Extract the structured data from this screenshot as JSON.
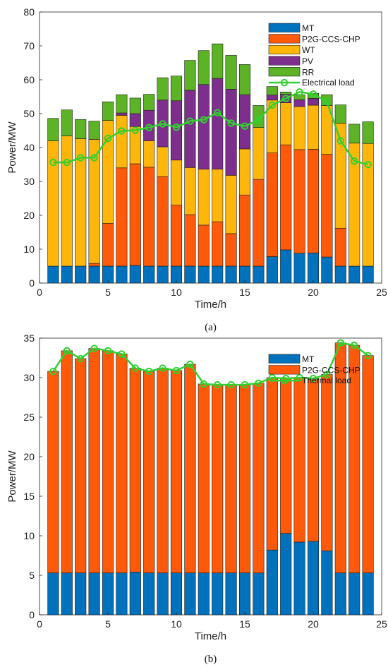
{
  "chart_data": [
    {
      "type": "bar",
      "stacked": true,
      "caption": "(a)",
      "xlabel": "Time/h",
      "ylabel": "Power/MW",
      "xlim": [
        0,
        25
      ],
      "ylim": [
        0,
        80
      ],
      "xticks": [
        0,
        5,
        10,
        15,
        20,
        25
      ],
      "yticks": [
        0,
        10,
        20,
        30,
        40,
        50,
        60,
        70,
        80
      ],
      "grid": false,
      "legend_position": "top-right",
      "x": [
        1,
        2,
        3,
        4,
        5,
        6,
        7,
        8,
        9,
        10,
        11,
        12,
        13,
        14,
        15,
        16,
        17,
        18,
        19,
        20,
        21,
        22,
        23,
        24
      ],
      "series": [
        {
          "name": "MT",
          "color": "#0072BD",
          "values": [
            5,
            5,
            5,
            5,
            5,
            5,
            5.2,
            5,
            5,
            5,
            5,
            5,
            5,
            5,
            5,
            5,
            7.8,
            9.8,
            8.8,
            8.9,
            7.7,
            5,
            5,
            5
          ]
        },
        {
          "name": "P2G-CCS-CHP",
          "color": "#FF5A0A",
          "values": [
            0,
            0,
            0,
            0.8,
            12.6,
            29,
            30,
            29.2,
            26.4,
            18,
            15.2,
            12.1,
            13.1,
            9.6,
            21,
            25.6,
            30.6,
            31,
            30.6,
            30.6,
            30.3,
            11.2,
            0,
            0
          ]
        },
        {
          "name": "WT",
          "color": "#FFB60A",
          "values": [
            37,
            38.4,
            37.6,
            36.6,
            30.4,
            15.5,
            11,
            7.8,
            8.8,
            13.3,
            13.9,
            16.5,
            15.5,
            17.2,
            13.6,
            15.3,
            15.6,
            12.4,
            12.7,
            13,
            14.4,
            31,
            36.3,
            36.2
          ]
        },
        {
          "name": "PV",
          "color": "#7E2F8E",
          "values": [
            0,
            0,
            0,
            0,
            0,
            0.7,
            3.8,
            9,
            13.8,
            17.5,
            22.8,
            25,
            26.8,
            25.4,
            16,
            0,
            1.5,
            2.5,
            2,
            2,
            0,
            0,
            0,
            0
          ]
        },
        {
          "name": "RR",
          "color": "#5BB325",
          "values": [
            6.6,
            7.7,
            5.7,
            5.4,
            5.5,
            5.4,
            4.6,
            4.7,
            6.6,
            7.3,
            8.8,
            10,
            10.2,
            10,
            8.9,
            6.5,
            2.5,
            0.7,
            1.5,
            1.5,
            3.2,
            5.4,
            5.6,
            6.4
          ]
        }
      ],
      "line": {
        "name": "Electrical load",
        "color": "#32D030",
        "values": [
          35.6,
          35.6,
          37,
          37,
          42.7,
          44.9,
          45.1,
          45.9,
          47,
          46,
          47.8,
          48.2,
          50.3,
          47.2,
          46.3,
          48.2,
          52.5,
          54.5,
          56.4,
          55.8,
          53.5,
          42,
          36,
          35
        ]
      }
    },
    {
      "type": "bar",
      "stacked": true,
      "caption": "(b)",
      "xlabel": "Time/h",
      "ylabel": "Power/MW",
      "xlim": [
        0,
        25
      ],
      "ylim": [
        0,
        35
      ],
      "xticks": [
        0,
        5,
        10,
        15,
        20,
        25
      ],
      "yticks": [
        0,
        5,
        10,
        15,
        20,
        25,
        30,
        35
      ],
      "grid": false,
      "legend_position": "top-right",
      "x": [
        1,
        2,
        3,
        4,
        5,
        6,
        7,
        8,
        9,
        10,
        11,
        12,
        13,
        14,
        15,
        16,
        17,
        18,
        19,
        20,
        21,
        22,
        23,
        24
      ],
      "series": [
        {
          "name": "MT",
          "color": "#0072BD",
          "values": [
            5.3,
            5.3,
            5.3,
            5.3,
            5.3,
            5.3,
            5.4,
            5.3,
            5.3,
            5.3,
            5.3,
            5.3,
            5.3,
            5.3,
            5.3,
            5.3,
            8.2,
            10.3,
            9.2,
            9.3,
            8.1,
            5.3,
            5.3,
            5.3
          ]
        },
        {
          "name": "P2G-CCS-CHP",
          "color": "#FF5A0A",
          "values": [
            25.5,
            28.1,
            27.1,
            28.4,
            28.1,
            27.7,
            25.8,
            25.5,
            25.9,
            25.6,
            26.4,
            23.9,
            23.8,
            23.8,
            23.8,
            24,
            21.8,
            19.6,
            20.8,
            20.6,
            22.3,
            29.1,
            28.8,
            27.5
          ]
        }
      ],
      "line": {
        "name": "Thermal load",
        "color": "#32D030",
        "values": [
          30.8,
          33.4,
          32.4,
          33.7,
          33.4,
          33,
          31.2,
          30.8,
          31.2,
          30.9,
          31.7,
          29.2,
          29.1,
          29.1,
          29.1,
          29.3,
          30,
          29.9,
          30,
          29.9,
          30.4,
          34.4,
          34.1,
          32.8
        ]
      }
    }
  ]
}
